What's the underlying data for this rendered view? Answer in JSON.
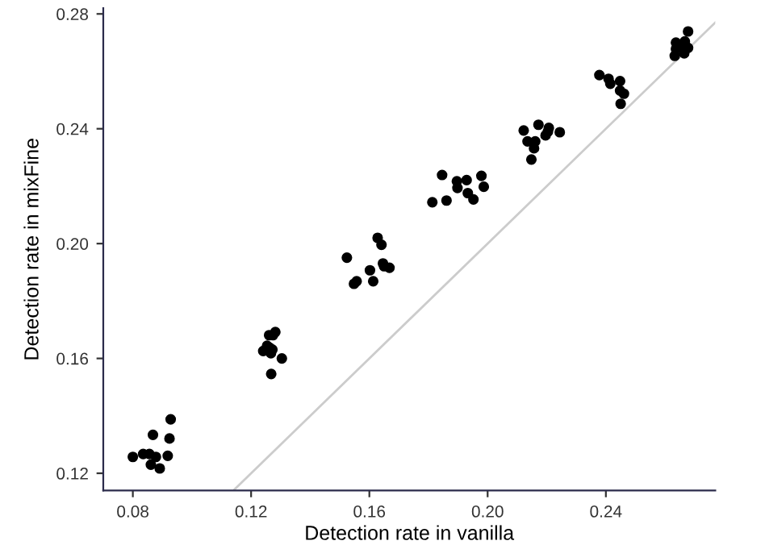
{
  "chart_data": {
    "type": "scatter",
    "xlabel": "Detection rate in vanilla",
    "ylabel": "Detection rate in mixFine",
    "xlim": [
      0.07,
      0.277
    ],
    "ylim": [
      0.114,
      0.282
    ],
    "xticks": [
      0.08,
      0.12,
      0.16,
      {
        "value": 0.2,
        "label": "0.20"
      },
      0.24
    ],
    "yticks": [
      0.12,
      0.16,
      {
        "value": 0.2,
        "label": "0.20"
      },
      0.24,
      0.28
    ],
    "grid": false,
    "marker": "circle",
    "series": [
      {
        "type": "line",
        "color": "#cccccc",
        "line_style": "solid",
        "marker": "none",
        "x": [
          0.1144,
          0.277
        ],
        "values": [
          0.1144,
          0.277
        ]
      },
      {
        "color": "#000000",
        "x": [
          0.08,
          0.0835,
          0.0856,
          0.0878,
          0.0861,
          0.0891,
          0.0868,
          0.0918,
          0.0924,
          0.0928,
          0.1268,
          0.1304,
          0.1241,
          0.1254,
          0.1267,
          0.1263,
          0.1261,
          0.1274,
          0.1282,
          0.1272,
          0.1524,
          0.1548,
          0.1557,
          0.1602,
          0.1613,
          0.1646,
          0.1668,
          0.165,
          0.1628,
          0.1641,
          0.1813,
          0.1861,
          0.1846,
          0.1896,
          0.1898,
          0.1929,
          0.1933,
          0.1952,
          0.1979,
          0.1987,
          0.2122,
          0.2172,
          0.2135,
          0.2161,
          0.2157,
          0.2148,
          0.2196,
          0.2207,
          0.2204,
          0.2244,
          0.2378,
          0.2409,
          0.2415,
          0.2448,
          0.2448,
          0.2461,
          0.245,
          0.2678,
          0.2637,
          0.2667,
          0.2637,
          0.2659,
          0.2678,
          0.2633,
          0.2665
        ],
        "values": [
          0.1257,
          0.1267,
          0.1267,
          0.1257,
          0.123,
          0.1217,
          0.1334,
          0.1261,
          0.1321,
          0.1388,
          0.1546,
          0.16,
          0.1626,
          0.1644,
          0.1618,
          0.1637,
          0.1681,
          0.1681,
          0.1692,
          0.1631,
          0.1951,
          0.186,
          0.1869,
          0.1907,
          0.1869,
          0.1931,
          0.1916,
          0.1921,
          0.202,
          0.1996,
          0.2144,
          0.215,
          0.2239,
          0.2217,
          0.2194,
          0.2221,
          0.2176,
          0.2154,
          0.2236,
          0.2198,
          0.2394,
          0.2414,
          0.2356,
          0.2356,
          0.2332,
          0.2293,
          0.2377,
          0.2403,
          0.239,
          0.2388,
          0.2587,
          0.2574,
          0.2557,
          0.2566,
          0.2533,
          0.2522,
          0.2487,
          0.2739,
          0.27,
          0.2704,
          0.2678,
          0.2682,
          0.2682,
          0.2654,
          0.2663
        ]
      }
    ]
  }
}
